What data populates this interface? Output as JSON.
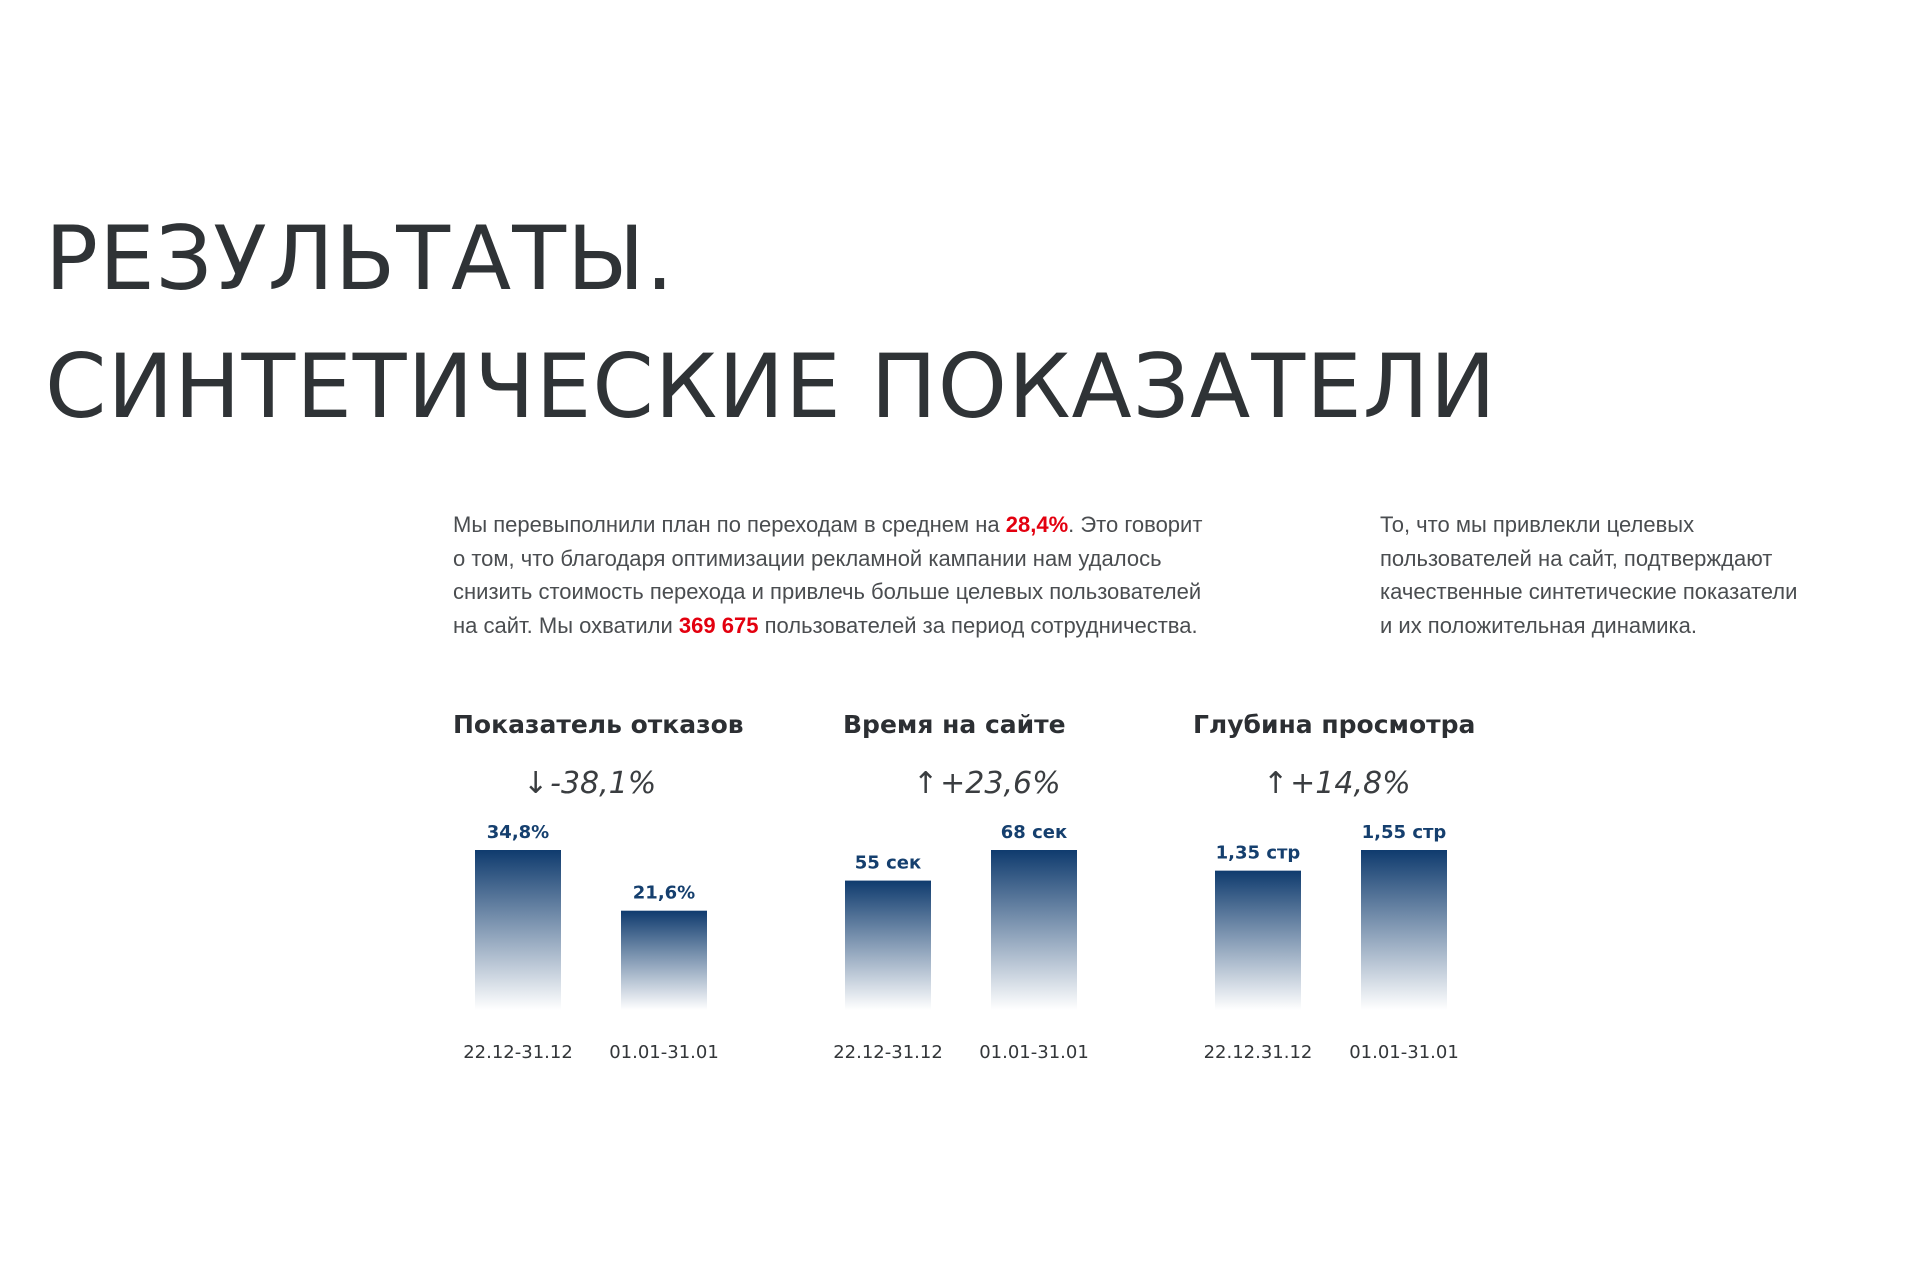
{
  "heading": {
    "line1": "РЕЗУЛЬТАТЫ.",
    "line2": "СИНТЕТИЧЕСКИЕ ПОКАЗАТЕЛИ"
  },
  "intro_left": {
    "l1_a": "Мы перевыполнили план по переходам в среднем на ",
    "l1_hl": "28,4%",
    "l1_b": ". Это говорит",
    "l2": "о том, что благодаря оптимизации рекламной кампании нам удалось",
    "l3": "снизить стоимость перехода и привлечь больше целевых пользователей",
    "l4_a": "на сайт. Мы охватили ",
    "l4_hl": "369 675",
    "l4_b": " пользователей за период сотрудничества."
  },
  "intro_right": {
    "l1": "То, что мы привлекли целевых",
    "l2": "пользователей на сайт, подтверждают",
    "l3": "качественные синтетические показатели",
    "l4": "и их положительная динамика."
  },
  "colors": {
    "bar_top": "#0f3b6e",
    "highlight": "#e3000f",
    "text": "#333639"
  },
  "chart_data": [
    {
      "type": "bar",
      "title": "Показатель отказов",
      "change_arrow": "↓",
      "change": "-38,1%",
      "categories": [
        "22.12-31.12",
        "01.01-31.01"
      ],
      "values": [
        34.8,
        21.6
      ],
      "value_labels": [
        "34,8%",
        "21,6%"
      ]
    },
    {
      "type": "bar",
      "title": "Время на сайте",
      "change_arrow": "↑",
      "change": "+23,6%",
      "categories": [
        "22.12-31.12",
        "01.01-31.01"
      ],
      "values": [
        55,
        68
      ],
      "value_labels": [
        "55 сек",
        "68 сек"
      ]
    },
    {
      "type": "bar",
      "title": "Глубина просмотра",
      "change_arrow": "↑",
      "change": "+14,8%",
      "categories": [
        "22.12.31.12",
        "01.01-31.01"
      ],
      "values": [
        1.35,
        1.55
      ],
      "value_labels": [
        "1,35 стр",
        "1,55 стр"
      ]
    }
  ]
}
